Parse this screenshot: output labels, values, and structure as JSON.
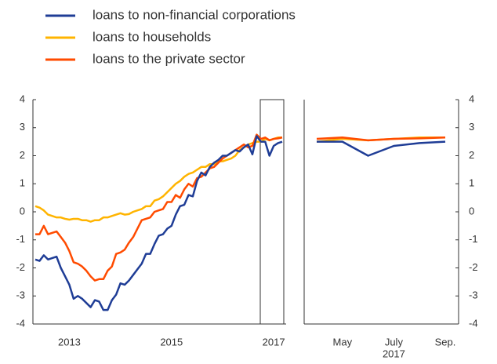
{
  "chart_data": [
    {
      "type": "line",
      "categories": [
        null,
        null,
        null,
        null,
        null,
        null,
        null,
        null,
        "2013",
        null,
        null,
        null,
        null,
        null,
        null,
        null,
        null,
        null,
        null,
        null,
        null,
        null,
        null,
        null,
        null,
        null,
        null,
        null,
        null,
        null,
        null,
        null,
        "2015",
        null,
        null,
        null,
        null,
        null,
        null,
        null,
        null,
        null,
        null,
        null,
        null,
        null,
        null,
        null,
        null,
        null,
        null,
        null,
        null,
        null,
        null,
        null,
        "2017",
        null,
        null
      ],
      "series": [
        {
          "name": "loans to non-financial corporations",
          "color": "#1f3d96",
          "values": [
            -1.7,
            -1.75,
            -1.55,
            -1.7,
            -1.65,
            -1.6,
            -2.0,
            -2.3,
            -2.6,
            -3.1,
            -3.0,
            -3.1,
            -3.25,
            -3.4,
            -3.15,
            -3.2,
            -3.5,
            -3.5,
            -3.15,
            -2.95,
            -2.55,
            -2.6,
            -2.45,
            -2.25,
            -2.05,
            -1.85,
            -1.5,
            -1.5,
            -1.15,
            -0.85,
            -0.8,
            -0.6,
            -0.5,
            -0.1,
            0.2,
            0.25,
            0.6,
            0.55,
            1.1,
            1.4,
            1.3,
            1.6,
            1.75,
            1.85,
            2.0,
            2.0,
            2.1,
            2.2,
            2.15,
            2.3,
            2.4,
            2.05,
            2.7,
            2.5,
            2.5,
            2.0,
            2.35,
            2.45,
            2.5
          ]
        },
        {
          "name": "loans to households",
          "color": "#ffb400",
          "values": [
            0.2,
            0.15,
            0.05,
            -0.1,
            -0.15,
            -0.2,
            -0.2,
            -0.25,
            -0.28,
            -0.25,
            -0.25,
            -0.3,
            -0.3,
            -0.35,
            -0.3,
            -0.3,
            -0.2,
            -0.2,
            -0.15,
            -0.1,
            -0.05,
            -0.1,
            -0.08,
            0.0,
            0.05,
            0.1,
            0.2,
            0.2,
            0.4,
            0.45,
            0.55,
            0.7,
            0.85,
            1.0,
            1.1,
            1.25,
            1.35,
            1.4,
            1.5,
            1.6,
            1.6,
            1.7,
            1.7,
            1.8,
            1.8,
            1.85,
            1.9,
            2.0,
            2.2,
            2.3,
            2.4,
            2.45,
            2.5,
            2.5,
            2.6,
            2.55,
            2.6,
            2.65,
            2.65
          ]
        },
        {
          "name": "loans to the private sector",
          "color": "#ff4b00",
          "values": [
            -0.8,
            -0.8,
            -0.5,
            -0.8,
            -0.75,
            -0.7,
            -0.9,
            -1.1,
            -1.4,
            -1.8,
            -1.85,
            -1.95,
            -2.1,
            -2.3,
            -2.45,
            -2.4,
            -2.4,
            -2.1,
            -1.95,
            -1.5,
            -1.45,
            -1.35,
            -1.1,
            -0.9,
            -0.6,
            -0.3,
            -0.25,
            -0.2,
            0.0,
            0.05,
            0.1,
            0.35,
            0.35,
            0.6,
            0.5,
            0.8,
            1.0,
            0.9,
            1.2,
            1.25,
            1.4,
            1.55,
            1.6,
            1.75,
            1.9,
            2.0,
            2.1,
            2.2,
            2.3,
            2.4,
            2.3,
            2.35,
            2.75,
            2.6,
            2.65,
            2.55,
            2.6,
            2.62,
            2.65
          ]
        }
      ],
      "ylim": [
        -4,
        4
      ],
      "yticks": [
        -4,
        -3,
        -2,
        -1,
        0,
        1,
        2,
        3,
        4
      ]
    },
    {
      "type": "line",
      "categories": [
        null,
        "May",
        null,
        "July",
        null,
        "Sep."
      ],
      "x_label": "2017",
      "series": [
        {
          "color": "#1f3d96",
          "values": [
            2.5,
            2.5,
            2.0,
            2.35,
            2.45,
            2.5
          ]
        },
        {
          "color": "#ffb400",
          "values": [
            2.5,
            2.6,
            2.55,
            2.6,
            2.65,
            2.65
          ]
        },
        {
          "color": "#ff4b00",
          "values": [
            2.6,
            2.65,
            2.55,
            2.6,
            2.62,
            2.65
          ]
        }
      ],
      "ylim": [
        -4,
        4
      ],
      "yticks": [
        -4,
        -3,
        -2,
        -1,
        0,
        1,
        2,
        3,
        4
      ]
    }
  ]
}
